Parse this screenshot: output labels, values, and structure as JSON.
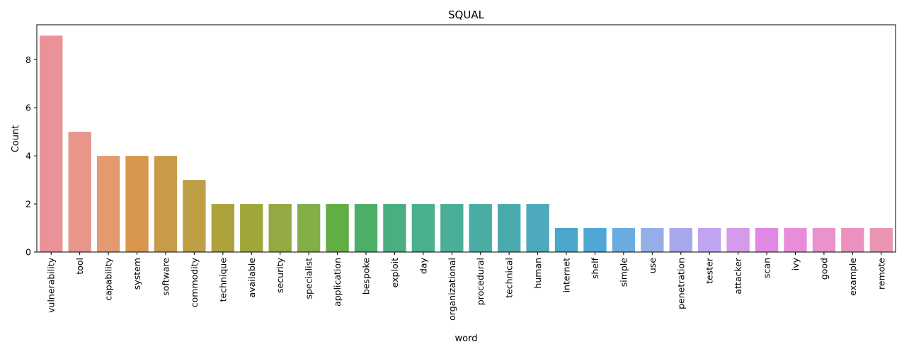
{
  "chart_data": {
    "type": "bar",
    "title": "SQUAL",
    "xlabel": "word",
    "ylabel": "Count",
    "ylim": [
      0,
      9.45
    ],
    "yticks": [
      0,
      2,
      4,
      6,
      8
    ],
    "grid": false,
    "legend": "none",
    "categories": [
      "vulnerability",
      "tool",
      "capability",
      "system",
      "software",
      "commodity",
      "technique",
      "available",
      "security",
      "specialist",
      "application",
      "bespoke",
      "exploit",
      "day",
      "organizational",
      "procedural",
      "technical",
      "human",
      "internet",
      "shelf",
      "simple",
      "use",
      "penetration",
      "tester",
      "attacker",
      "scan",
      "ivy",
      "good",
      "example",
      "remote"
    ],
    "values": [
      9,
      5,
      4,
      4,
      4,
      3,
      2,
      2,
      2,
      2,
      2,
      2,
      2,
      2,
      2,
      2,
      2,
      2,
      1,
      1,
      1,
      1,
      1,
      1,
      1,
      1,
      1,
      1,
      1,
      1
    ],
    "colors": [
      "#eb9299",
      "#e8968a",
      "#e39a6f",
      "#d8964e",
      "#c89b4a",
      "#bf9f46",
      "#ada23c",
      "#a1a63b",
      "#93a943",
      "#84ae48",
      "#62ae45",
      "#4baf67",
      "#4aae80",
      "#49af8d",
      "#4aae98",
      "#4aada3",
      "#4aabaf",
      "#4ea9bc",
      "#4aa6cc",
      "#4fa7d6",
      "#6aace0",
      "#94aee8",
      "#a9a8ee",
      "#bfa4ef",
      "#d49be9",
      "#e189e6",
      "#e88ed8",
      "#e992cc",
      "#ea91be",
      "#eb95b0"
    ]
  }
}
